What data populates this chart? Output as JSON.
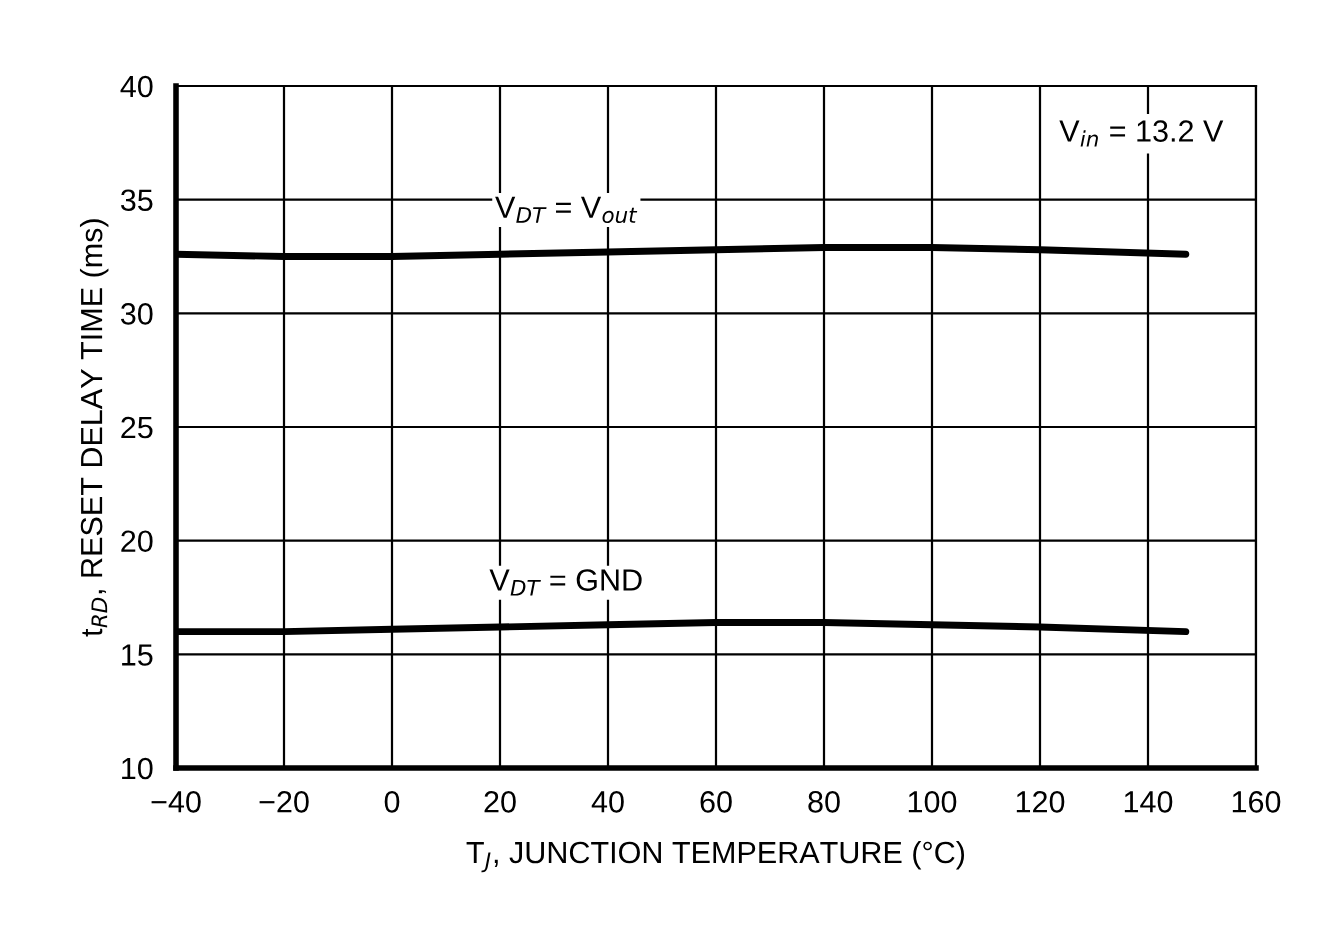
{
  "chart_data": {
    "type": "line",
    "xlabel": "T$_{J}$, JUNCTION TEMPERATURE (°C)",
    "ylabel": "t$_{RD}$, RESET DELAY TIME (ms)",
    "xlim": [
      -40,
      160
    ],
    "xticks": [
      {
        "value": -40,
        "label": "−40"
      },
      {
        "value": -20,
        "label": "−20"
      },
      0,
      20,
      40,
      60,
      80,
      100,
      120,
      140,
      160
    ],
    "ylim": [
      10,
      40
    ],
    "yticks": [
      10,
      15,
      20,
      25,
      30,
      35,
      40
    ],
    "grid": true,
    "legend": false,
    "marker": "none",
    "line_style": "solid",
    "annotations": [
      "V$_{in}$ = 13.2 V"
    ],
    "series": [
      {
        "name": "V$_{DT}$ = V$_{out}$",
        "color": "#000000",
        "x": [
          -40,
          -20,
          0,
          20,
          40,
          60,
          80,
          100,
          120,
          147
        ],
        "values": [
          32.6,
          32.5,
          32.5,
          32.6,
          32.7,
          32.8,
          32.9,
          32.9,
          32.8,
          32.6
        ]
      },
      {
        "name": "V$_{DT}$ = GND",
        "color": "#000000",
        "x": [
          -40,
          -20,
          0,
          20,
          40,
          60,
          80,
          100,
          120,
          147
        ],
        "values": [
          16.0,
          16.0,
          16.1,
          16.2,
          16.3,
          16.4,
          16.4,
          16.3,
          16.2,
          16.0
        ]
      }
    ]
  }
}
